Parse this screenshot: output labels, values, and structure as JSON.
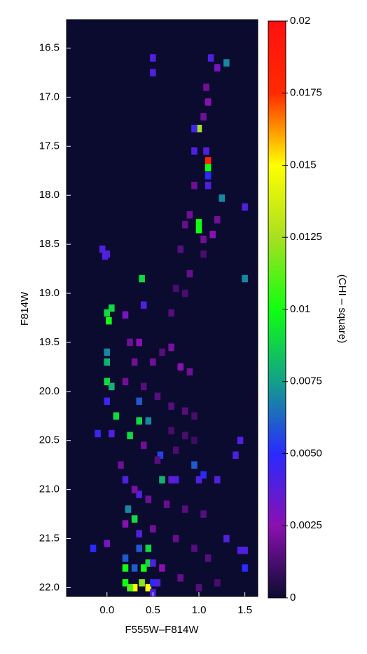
{
  "chart_data": {
    "type": "heatmap",
    "xlabel": "F555W–F814W",
    "ylabel": "F814W",
    "colorbar_label": "(CHI – square)",
    "xlim": [
      -0.44,
      1.64
    ],
    "ylim": [
      22.09,
      16.21
    ],
    "xticks": [
      {
        "value": 0,
        "label": "0.0"
      },
      0.5,
      {
        "value": 1,
        "label": "1.0"
      },
      1.5
    ],
    "yticks": [
      16.5,
      {
        "value": 17,
        "label": "17.0"
      },
      17.5,
      {
        "value": 18,
        "label": "18.0"
      },
      18.5,
      {
        "value": 19,
        "label": "19.0"
      },
      19.5,
      {
        "value": 20,
        "label": "20.0"
      },
      20.5,
      {
        "value": 21,
        "label": "21.0"
      },
      21.5,
      {
        "value": 22,
        "label": "22.0"
      }
    ],
    "clim": [
      0,
      0.02
    ],
    "cticks": [
      0,
      0.0025,
      {
        "value": 0.005,
        "label": "0.0050"
      },
      0.0075,
      0.01,
      0.0125,
      0.015,
      0.0175,
      0.02
    ],
    "colorscale": [
      "#0b0b30",
      "#8a10b0",
      "#2a2aff",
      "#12a08a",
      "#10ff10",
      "#a8e020",
      "#ffff00",
      "#ff2a00",
      "#ff1010"
    ],
    "x": [
      0.5,
      0.5,
      1.13,
      1.2,
      1.3,
      1.0,
      0.95,
      1.1,
      1.1,
      1.1,
      1.1,
      0.95,
      1.08,
      1.25,
      1.5,
      1.0,
      1.0,
      -0.05,
      0.0,
      -0.02,
      0.38,
      1.5,
      0.0,
      0.05,
      0.02,
      0.2,
      0.4,
      0.0,
      0.0,
      0.0,
      0.05,
      0.0,
      0.35,
      0.35,
      0.45,
      0.1,
      0.25,
      -0.1,
      0.05,
      0.58,
      0.95,
      1.45,
      1.4,
      0.6,
      0.7,
      0.75,
      1.05,
      1.0,
      1.2,
      0.2,
      0.35,
      0.23,
      0.3,
      0.35,
      1.3,
      0.0,
      -0.15,
      0.2,
      0.35,
      0.45,
      0.2,
      0.3,
      0.4,
      0.45,
      0.5,
      0.3,
      0.45,
      0.38,
      0.2,
      0.25,
      0.5,
      0.55,
      0.5,
      1.45,
      1.5,
      1.5,
      0.25,
      0.35,
      0.3,
      0.5,
      0.6,
      0.7,
      0.8,
      0.9,
      0.2,
      0.4,
      0.55,
      0.7,
      0.85,
      0.95,
      0.7,
      0.85,
      0.95,
      0.4,
      0.55,
      0.75,
      0.15,
      0.3,
      0.45,
      0.65,
      0.85,
      1.05,
      0.2,
      0.5,
      0.75,
      0.95,
      1.1,
      0.6,
      0.8,
      1.0,
      1.2,
      0.95,
      0.9,
      0.85,
      0.8,
      0.9,
      0.85,
      1.05,
      1.1,
      1.08,
      1.05,
      0.75,
      0.7,
      1.2,
      1.15,
      1.05
    ],
    "y": [
      16.6,
      16.75,
      16.6,
      16.7,
      16.65,
      17.32,
      17.32,
      17.65,
      17.72,
      17.8,
      17.9,
      17.55,
      17.55,
      18.03,
      18.12,
      18.35,
      18.28,
      18.55,
      18.6,
      18.62,
      18.85,
      18.85,
      19.2,
      19.15,
      19.28,
      19.22,
      19.12,
      19.6,
      19.7,
      19.9,
      19.95,
      20.1,
      20.1,
      20.3,
      20.3,
      20.25,
      20.45,
      20.43,
      20.43,
      20.65,
      20.75,
      20.5,
      20.65,
      20.9,
      20.9,
      20.9,
      20.85,
      20.9,
      20.9,
      20.9,
      21.05,
      21.2,
      21.3,
      21.45,
      21.5,
      21.55,
      21.6,
      21.7,
      21.6,
      21.6,
      21.8,
      21.8,
      21.8,
      21.75,
      21.75,
      22.0,
      22.0,
      21.95,
      21.95,
      22.0,
      21.95,
      21.95,
      22.05,
      21.62,
      21.62,
      21.8,
      19.5,
      19.5,
      19.7,
      19.7,
      19.6,
      19.55,
      19.75,
      19.8,
      19.9,
      19.95,
      20.05,
      20.15,
      20.2,
      20.25,
      20.4,
      20.45,
      20.5,
      20.55,
      20.7,
      20.6,
      20.75,
      21.0,
      21.1,
      21.15,
      21.2,
      21.25,
      21.35,
      21.4,
      21.5,
      21.6,
      21.7,
      21.8,
      21.9,
      22.0,
      21.95,
      17.9,
      18.2,
      18.3,
      18.55,
      18.8,
      19.0,
      17.2,
      17.05,
      16.9,
      18.6,
      18.95,
      19.2,
      18.25,
      18.4,
      18.45
    ],
    "values": [
      0.004,
      0.004,
      0.004,
      0.003,
      0.007,
      0.0125,
      0.0045,
      0.018,
      0.01,
      0.005,
      0.004,
      0.004,
      0.004,
      0.007,
      0.004,
      0.01,
      0.01,
      0.004,
      0.004,
      0.004,
      0.009,
      0.007,
      0.009,
      0.009,
      0.01,
      0.003,
      0.004,
      0.007,
      0.008,
      0.009,
      0.008,
      0.0045,
      0.006,
      0.009,
      0.007,
      0.009,
      0.009,
      0.0045,
      0.004,
      0.0055,
      0.006,
      0.004,
      0.004,
      0.008,
      0.0035,
      0.004,
      0.005,
      0.004,
      0.004,
      0.004,
      0.004,
      0.007,
      0.009,
      0.004,
      0.004,
      0.003,
      0.005,
      0.006,
      0.006,
      0.009,
      0.01,
      0.006,
      0.01,
      0.009,
      0.004,
      0.015,
      0.015,
      0.012,
      0.01,
      0.011,
      0.005,
      0.004,
      0.004,
      0.004,
      0.004,
      0.005,
      0.002,
      0.0025,
      0.002,
      0.002,
      0.0015,
      0.0022,
      0.0025,
      0.002,
      0.002,
      0.0015,
      0.0015,
      0.0015,
      0.0015,
      0.0012,
      0.0012,
      0.0012,
      0.001,
      0.002,
      0.0015,
      0.0012,
      0.002,
      0.0022,
      0.002,
      0.0018,
      0.0015,
      0.0015,
      0.0025,
      0.002,
      0.0018,
      0.0015,
      0.0015,
      0.0025,
      0.0018,
      0.0015,
      0.0012,
      0.002,
      0.002,
      0.0018,
      0.0015,
      0.0018,
      0.0012,
      0.002,
      0.0025,
      0.002,
      0.0012,
      0.0012,
      0.0015,
      0.002,
      0.0025,
      0.002
    ],
    "grid": false
  }
}
